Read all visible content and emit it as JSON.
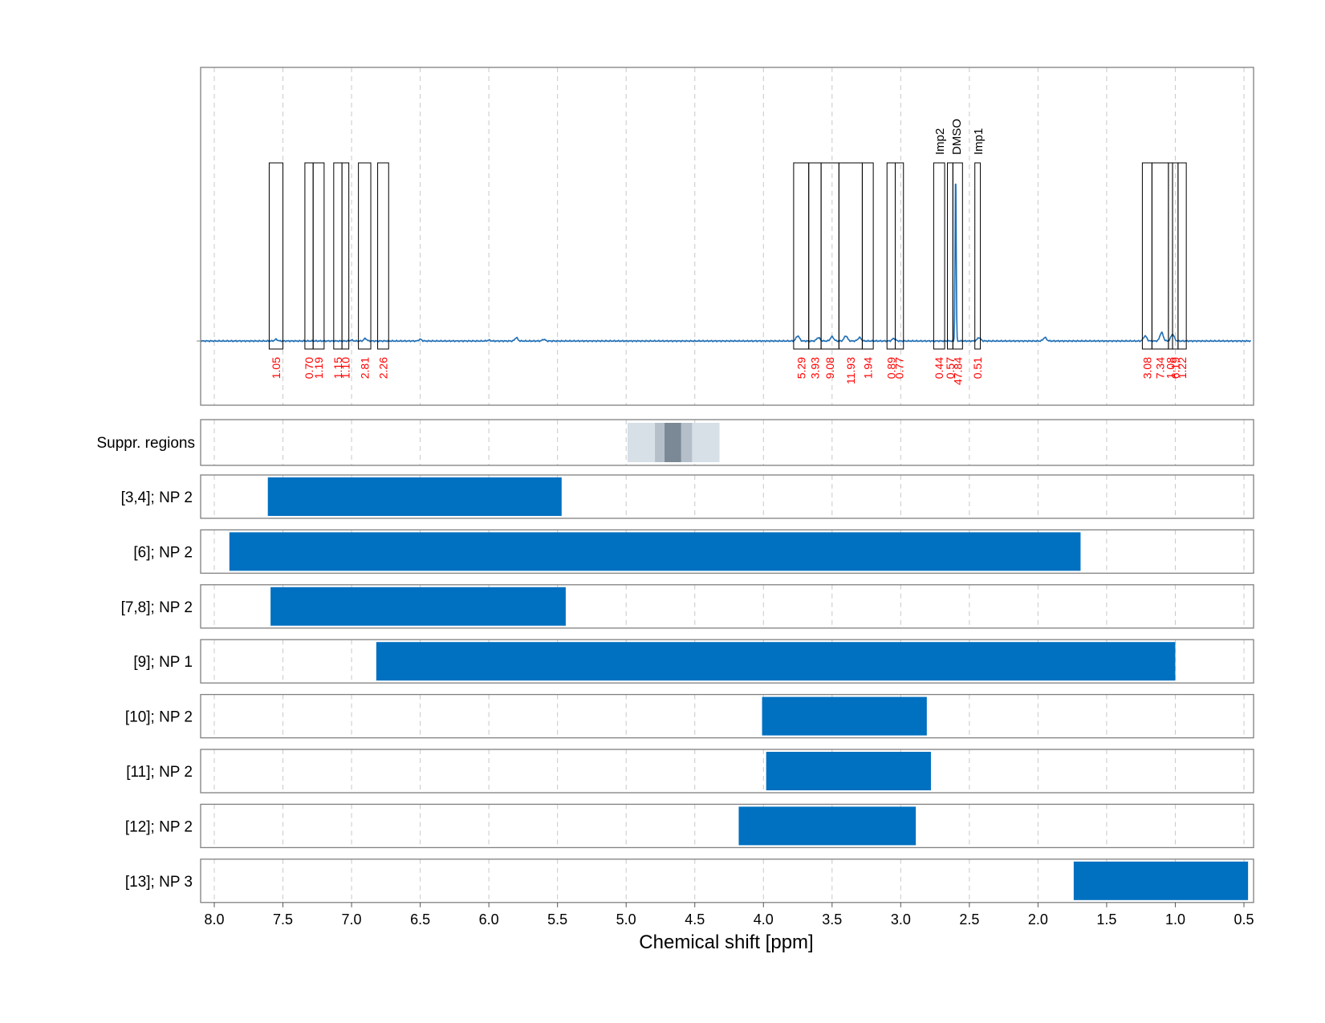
{
  "chart_data": {
    "type": "nmr-spectrum-with-range-bars",
    "xlabel": "Chemical shift [ppm]",
    "xlim": [
      8.1,
      0.45
    ],
    "x_ticks": [
      8.0,
      7.5,
      7.0,
      6.5,
      6.0,
      5.5,
      5.0,
      4.5,
      4.0,
      3.5,
      3.0,
      2.5,
      2.0,
      1.5,
      1.0,
      0.5
    ],
    "x_tick_labels": [
      "8.0",
      "7.5",
      "7.0",
      "6.5",
      "6.0",
      "5.5",
      "5.0",
      "4.5",
      "4.0",
      "3.5",
      "3.0",
      "2.5",
      "2.0",
      "1.5",
      "1.0",
      "0.5"
    ],
    "grid": true,
    "colors": {
      "spectrum": "#1f6eb5",
      "bar": "#0070c0",
      "integral_label": "#ff0000",
      "region_box": "#000000",
      "frame": "#808080",
      "grid": "#c8c8c8",
      "suppr_light": "#d7dfe7",
      "suppr_mid": "#b4bfca",
      "suppr_dark": "#7b8896"
    },
    "spectrum": {
      "baseline_points": [
        [
          8.1,
          0.0
        ],
        [
          7.55,
          0.01
        ],
        [
          7.0,
          0.005
        ],
        [
          6.9,
          0.015
        ],
        [
          6.5,
          0.01
        ],
        [
          6.0,
          0.005
        ],
        [
          5.8,
          0.02
        ],
        [
          5.6,
          0.01
        ],
        [
          5.0,
          0.0
        ],
        [
          4.0,
          0.0
        ]
      ],
      "peaks": [
        {
          "ppm": 3.75,
          "height": 0.03
        },
        {
          "ppm": 3.6,
          "height": 0.02
        },
        {
          "ppm": 3.5,
          "height": 0.025
        },
        {
          "ppm": 3.4,
          "height": 0.03
        },
        {
          "ppm": 3.3,
          "height": 0.02
        },
        {
          "ppm": 3.05,
          "height": 0.015
        },
        {
          "ppm": 2.6,
          "height": 1.0
        },
        {
          "ppm": 2.43,
          "height": 0.02
        },
        {
          "ppm": 1.95,
          "height": 0.02
        },
        {
          "ppm": 1.22,
          "height": 0.03
        },
        {
          "ppm": 1.1,
          "height": 0.05
        },
        {
          "ppm": 1.02,
          "height": 0.04
        }
      ]
    },
    "integration_regions": [
      {
        "from": 7.6,
        "to": 7.5,
        "label": "1.05"
      },
      {
        "from": 7.34,
        "to": 7.28,
        "label": "0.70"
      },
      {
        "from": 7.28,
        "to": 7.2,
        "label": "1.19"
      },
      {
        "from": 7.13,
        "to": 7.07,
        "label": "1.15"
      },
      {
        "from": 7.07,
        "to": 7.02,
        "label": "1.10"
      },
      {
        "from": 6.95,
        "to": 6.86,
        "label": "2.81"
      },
      {
        "from": 6.81,
        "to": 6.73,
        "label": "2.26"
      },
      {
        "from": 3.78,
        "to": 3.67,
        "label": "5.29"
      },
      {
        "from": 3.67,
        "to": 3.58,
        "label": "3.93"
      },
      {
        "from": 3.58,
        "to": 3.45,
        "label": "9.08"
      },
      {
        "from": 3.45,
        "to": 3.28,
        "label": "11.93"
      },
      {
        "from": 3.28,
        "to": 3.2,
        "label": "1.94"
      },
      {
        "from": 3.1,
        "to": 3.04,
        "label": "0.89"
      },
      {
        "from": 3.04,
        "to": 2.98,
        "label": "0.77"
      },
      {
        "from": 2.76,
        "to": 2.68,
        "label": "0.44"
      },
      {
        "from": 2.66,
        "to": 2.62,
        "label": "0.57"
      },
      {
        "from": 2.62,
        "to": 2.55,
        "label": "47.84"
      },
      {
        "from": 2.46,
        "to": 2.42,
        "label": "0.51"
      },
      {
        "from": 1.24,
        "to": 1.17,
        "label": "3.08"
      },
      {
        "from": 1.17,
        "to": 1.05,
        "label": "7.34"
      },
      {
        "from": 1.05,
        "to": 1.02,
        "label": "1.08"
      },
      {
        "from": 1.02,
        "to": 0.98,
        "label": "6.19"
      },
      {
        "from": 0.98,
        "to": 0.92,
        "label": "1.22"
      }
    ],
    "annotations": [
      {
        "ppm": 2.72,
        "text": "Imp2"
      },
      {
        "ppm": 2.6,
        "text": "DMSO"
      },
      {
        "ppm": 2.44,
        "text": "Imp1"
      }
    ],
    "suppression_regions": {
      "label": "Suppr. regions",
      "bands": [
        {
          "from": 4.99,
          "to": 4.32,
          "level": "light"
        },
        {
          "from": 4.79,
          "to": 4.52,
          "level": "mid"
        },
        {
          "from": 4.72,
          "to": 4.6,
          "level": "dark"
        }
      ]
    },
    "range_bars": [
      {
        "label": "[3,4]; NP 2",
        "from": 7.61,
        "to": 5.47
      },
      {
        "label": "[6]; NP 2",
        "from": 7.89,
        "to": 1.69
      },
      {
        "label": "[7,8]; NP 2",
        "from": 7.59,
        "to": 5.44
      },
      {
        "label": "[9]; NP 1",
        "from": 6.82,
        "to": 1.0
      },
      {
        "label": "[10]; NP 2",
        "from": 4.01,
        "to": 2.81
      },
      {
        "label": "[11]; NP 2",
        "from": 3.98,
        "to": 2.78
      },
      {
        "label": "[12]; NP 2",
        "from": 4.18,
        "to": 2.89
      },
      {
        "label": "[13]; NP 3",
        "from": 1.74,
        "to": 0.47
      }
    ]
  }
}
